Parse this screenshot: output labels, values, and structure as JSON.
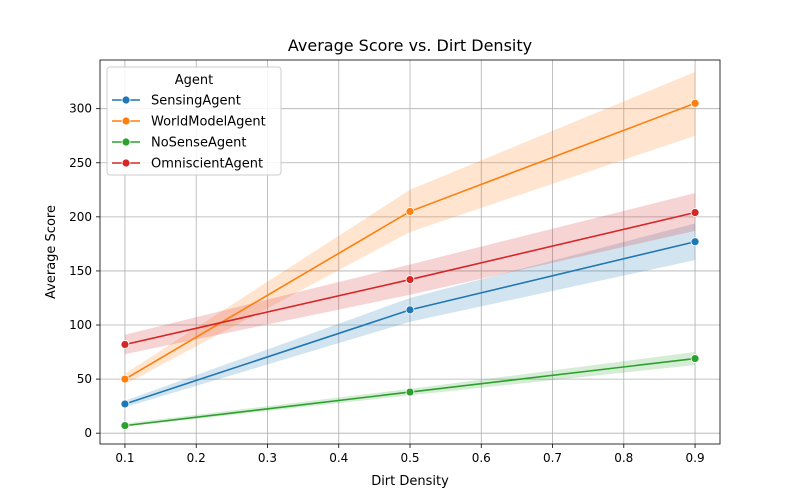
{
  "chart_data": {
    "type": "line",
    "title": "Average Score vs. Dirt Density",
    "xlabel": "Dirt Density",
    "ylabel": "Average Score",
    "xlim": [
      0.065,
      0.935
    ],
    "ylim": [
      -10,
      345
    ],
    "xticks": [
      0.1,
      0.2,
      0.3,
      0.4,
      0.5,
      0.6,
      0.7,
      0.8,
      0.9
    ],
    "yticks": [
      0,
      50,
      100,
      150,
      200,
      250,
      300
    ],
    "grid": true,
    "legend": {
      "title": "Agent",
      "placement": "top-left"
    },
    "x": [
      0.1,
      0.5,
      0.9
    ],
    "series": [
      {
        "name": "SensingAgent",
        "color": "#1f77b4",
        "values": [
          27,
          114,
          177
        ],
        "lower": [
          24,
          103,
          160
        ],
        "upper": [
          30,
          125,
          194
        ]
      },
      {
        "name": "WorldModelAgent",
        "color": "#ff7f0e",
        "values": [
          50,
          205,
          305
        ],
        "lower": [
          45,
          186,
          275
        ],
        "upper": [
          55,
          225,
          334
        ]
      },
      {
        "name": "NoSenseAgent",
        "color": "#2ca02c",
        "values": [
          7,
          38,
          69
        ],
        "lower": [
          6,
          35,
          63
        ],
        "upper": [
          9,
          41,
          75
        ]
      },
      {
        "name": "OmniscientAgent",
        "color": "#d62728",
        "values": [
          82,
          142,
          204
        ],
        "lower": [
          73,
          128,
          187
        ],
        "upper": [
          91,
          156,
          222
        ]
      }
    ]
  }
}
